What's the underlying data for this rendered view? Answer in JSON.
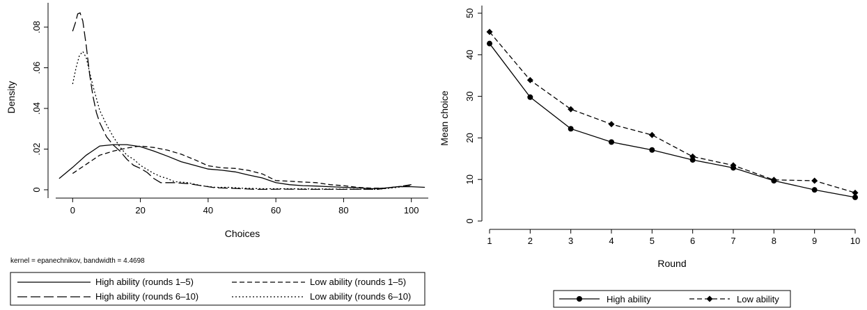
{
  "chart_data": [
    {
      "type": "line",
      "xlabel": "Choices",
      "ylabel": "Density",
      "xlim": [
        -5,
        105
      ],
      "ylim": [
        -0.003,
        0.092
      ],
      "x_ticks": [
        0,
        20,
        40,
        60,
        80,
        100
      ],
      "x_tick_labels": [
        "0",
        "20",
        "40",
        "60",
        "80",
        "100"
      ],
      "y_ticks": [
        0,
        0.02,
        0.04,
        0.06,
        0.08
      ],
      "y_tick_labels": [
        "0",
        ".02",
        ".04",
        ".06",
        ".08"
      ],
      "grid": false,
      "legend_position": "bottom",
      "note": "kernel = epanechnikov, bandwidth = 4.4698",
      "series": [
        {
          "name": "High ability (rounds 1–5)",
          "dash": "",
          "points": [
            [
              -4,
              0.0055
            ],
            [
              0,
              0.011
            ],
            [
              4,
              0.017
            ],
            [
              8,
              0.0215
            ],
            [
              12,
              0.0222
            ],
            [
              16,
              0.0222
            ],
            [
              20,
              0.0212
            ],
            [
              24,
              0.019
            ],
            [
              28,
              0.0165
            ],
            [
              32,
              0.0138
            ],
            [
              36,
              0.012
            ],
            [
              40,
              0.0102
            ],
            [
              44,
              0.0096
            ],
            [
              48,
              0.0088
            ],
            [
              52,
              0.0072
            ],
            [
              56,
              0.0058
            ],
            [
              60,
              0.0035
            ],
            [
              64,
              0.0025
            ],
            [
              68,
              0.002
            ],
            [
              72,
              0.0018
            ],
            [
              76,
              0.0015
            ],
            [
              80,
              0.0012
            ],
            [
              84,
              0.001
            ],
            [
              88,
              0.0005
            ],
            [
              92,
              0.0008
            ],
            [
              96,
              0.0015
            ],
            [
              100,
              0.0015
            ],
            [
              104,
              0.0012
            ]
          ]
        },
        {
          "name": "Low ability (rounds 1–5)",
          "dash": "7,4",
          "points": [
            [
              0,
              0.008
            ],
            [
              4,
              0.0125
            ],
            [
              8,
              0.017
            ],
            [
              12,
              0.019
            ],
            [
              16,
              0.0205
            ],
            [
              20,
              0.0215
            ],
            [
              24,
              0.0208
            ],
            [
              28,
              0.0195
            ],
            [
              32,
              0.0175
            ],
            [
              36,
              0.0148
            ],
            [
              40,
              0.0118
            ],
            [
              44,
              0.0108
            ],
            [
              48,
              0.0105
            ],
            [
              52,
              0.0095
            ],
            [
              56,
              0.0078
            ],
            [
              60,
              0.0045
            ],
            [
              64,
              0.0042
            ],
            [
              68,
              0.0038
            ],
            [
              72,
              0.0035
            ],
            [
              76,
              0.0025
            ],
            [
              80,
              0.002
            ],
            [
              84,
              0.0012
            ],
            [
              88,
              0.0008
            ],
            [
              92,
              0.0008
            ],
            [
              96,
              0.0015
            ],
            [
              100,
              0.0022
            ]
          ]
        },
        {
          "name": "High ability (rounds 6–10)",
          "dash": "14,5",
          "points": [
            [
              0,
              0.078
            ],
            [
              0.8,
              0.082
            ],
            [
              1.5,
              0.0865
            ],
            [
              2.2,
              0.087
            ],
            [
              3,
              0.083
            ],
            [
              4,
              0.071
            ],
            [
              5,
              0.057
            ],
            [
              6,
              0.046
            ],
            [
              7,
              0.038
            ],
            [
              8,
              0.033
            ],
            [
              10,
              0.026
            ],
            [
              12,
              0.022
            ],
            [
              14,
              0.019
            ],
            [
              16,
              0.015
            ],
            [
              18,
              0.012
            ],
            [
              20,
              0.0105
            ],
            [
              22,
              0.0085
            ],
            [
              24,
              0.0055
            ],
            [
              26,
              0.0035
            ],
            [
              28,
              0.0035
            ],
            [
              30,
              0.0035
            ],
            [
              34,
              0.003
            ],
            [
              38,
              0.002
            ],
            [
              42,
              0.001
            ],
            [
              46,
              0.0008
            ],
            [
              50,
              0.0005
            ],
            [
              54,
              0.0002
            ],
            [
              58,
              0.0002
            ],
            [
              62,
              0.0003
            ],
            [
              70,
              0.0002
            ],
            [
              80,
              0.0002
            ],
            [
              90,
              0.0002
            ],
            [
              96,
              0.0015
            ],
            [
              100,
              0.0025
            ]
          ]
        },
        {
          "name": "Low ability (rounds 6–10)",
          "dash": "2,3",
          "points": [
            [
              0,
              0.052
            ],
            [
              1,
              0.06
            ],
            [
              2,
              0.066
            ],
            [
              3,
              0.068
            ],
            [
              4,
              0.065
            ],
            [
              5,
              0.058
            ],
            [
              6,
              0.051
            ],
            [
              7,
              0.045
            ],
            [
              8,
              0.039
            ],
            [
              10,
              0.032
            ],
            [
              12,
              0.026
            ],
            [
              14,
              0.021
            ],
            [
              16,
              0.017
            ],
            [
              18,
              0.015
            ],
            [
              20,
              0.012
            ],
            [
              22,
              0.01
            ],
            [
              24,
              0.008
            ],
            [
              26,
              0.0065
            ],
            [
              28,
              0.0055
            ],
            [
              30,
              0.004
            ],
            [
              34,
              0.0035
            ],
            [
              38,
              0.002
            ],
            [
              42,
              0.0012
            ],
            [
              46,
              0.0012
            ],
            [
              50,
              0.0008
            ],
            [
              56,
              0.0005
            ],
            [
              62,
              0.0005
            ],
            [
              70,
              0.0004
            ],
            [
              80,
              0.0003
            ],
            [
              90,
              0.0002
            ],
            [
              96,
              0.0012
            ],
            [
              100,
              0.0022
            ]
          ]
        }
      ]
    },
    {
      "type": "line",
      "xlabel": "Round",
      "ylabel": "Mean choice",
      "xlim": [
        0.85,
        10.15
      ],
      "ylim": [
        -1,
        51
      ],
      "x_ticks": [
        1,
        2,
        3,
        4,
        5,
        6,
        7,
        8,
        9,
        10
      ],
      "x_tick_labels": [
        "1",
        "2",
        "3",
        "4",
        "5",
        "6",
        "7",
        "8",
        "9",
        "10"
      ],
      "y_ticks": [
        0,
        10,
        20,
        30,
        40,
        50
      ],
      "y_tick_labels": [
        "0",
        "10",
        "20",
        "30",
        "40",
        "50"
      ],
      "grid": false,
      "legend_position": "bottom",
      "series": [
        {
          "name": "High ability",
          "dash": "",
          "marker": "circle",
          "x": [
            1,
            2,
            3,
            4,
            5,
            6,
            7,
            8,
            9,
            10
          ],
          "values": [
            42.7,
            29.8,
            22.2,
            19.0,
            17.1,
            14.7,
            12.8,
            9.7,
            7.5,
            5.7
          ]
        },
        {
          "name": "Low ability",
          "dash": "7,4",
          "marker": "diamond",
          "x": [
            1,
            2,
            3,
            4,
            5,
            6,
            7,
            8,
            9,
            10
          ],
          "values": [
            45.5,
            33.9,
            26.9,
            23.3,
            20.7,
            15.5,
            13.4,
            9.9,
            9.7,
            6.8
          ]
        }
      ]
    }
  ]
}
